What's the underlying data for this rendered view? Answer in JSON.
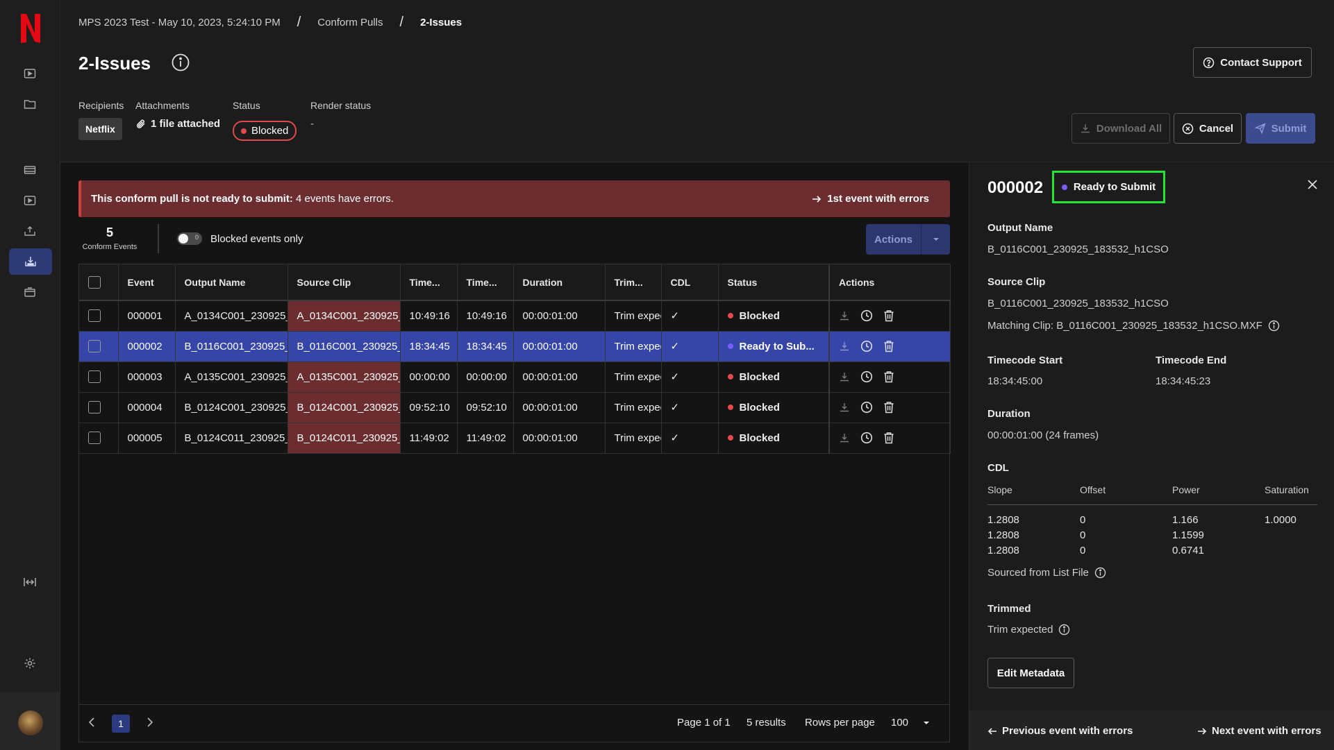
{
  "breadcrumb": {
    "project": "MPS 2023 Test - May 10, 2023, 5:24:10 PM",
    "section": "Conform Pulls",
    "current": "2-Issues",
    "separator": "/"
  },
  "page": {
    "title": "2-Issues",
    "recipients_label": "Recipients",
    "recipients_value": "Netflix",
    "attachments_label": "Attachments",
    "attachments_value": "1 file attached",
    "status_label": "Status",
    "status_value": "Blocked",
    "render_status_label": "Render status",
    "render_status_value": "-"
  },
  "header_buttons": {
    "contact_support": "Contact Support",
    "download_all": "Download All",
    "cancel": "Cancel",
    "submit": "Submit"
  },
  "banner": {
    "bold_text": "This conform pull is not ready to submit:",
    "text": "4 events have errors.",
    "link": "1st event with errors"
  },
  "summary": {
    "count": "5",
    "count_label": "Conform Events",
    "toggle_label": "Blocked events only",
    "toggle_state": "0",
    "actions_label": "Actions"
  },
  "table": {
    "columns": [
      "Event",
      "Output Name",
      "Source Clip",
      "Time...",
      "Time...",
      "Duration",
      "Trim...",
      "CDL",
      "Status",
      "Actions"
    ],
    "rows": [
      {
        "event": "000001",
        "output": "A_0134C001_230925_",
        "source": "A_0134C001_230925_",
        "tc_start": "10:49:16",
        "tc_end": "10:49:16",
        "duration": "00:00:01:00",
        "trim": "Trim expected",
        "cdl": "✓",
        "status": "Blocked"
      },
      {
        "event": "000002",
        "output": "B_0116C001_230925_",
        "source": "B_0116C001_230925_",
        "tc_start": "18:34:45",
        "tc_end": "18:34:45",
        "duration": "00:00:01:00",
        "trim": "Trim expected",
        "cdl": "✓",
        "status": "Ready to Sub..."
      },
      {
        "event": "000003",
        "output": "A_0135C001_230925_",
        "source": "A_0135C001_230925_",
        "tc_start": "00:00:00",
        "tc_end": "00:00:00",
        "duration": "00:00:01:00",
        "trim": "Trim expected",
        "cdl": "✓",
        "status": "Blocked"
      },
      {
        "event": "000004",
        "output": "B_0124C001_230925_",
        "source": "B_0124C001_230925_",
        "tc_start": "09:52:10",
        "tc_end": "09:52:10",
        "duration": "00:00:01:00",
        "trim": "Trim expected",
        "cdl": "✓",
        "status": "Blocked"
      },
      {
        "event": "000005",
        "output": "B_0124C011_230925_",
        "source": "B_0124C011_230925_",
        "tc_start": "11:49:02",
        "tc_end": "11:49:02",
        "duration": "00:00:01:00",
        "trim": "Trim expected",
        "cdl": "✓",
        "status": "Blocked"
      }
    ]
  },
  "pager": {
    "current_page": "1",
    "page_info": "Page 1 of 1",
    "results": "5 results",
    "rows_label": "Rows per page",
    "rows_value": "100"
  },
  "detail": {
    "event_id": "000002",
    "status": "Ready to Submit",
    "output_name_label": "Output Name",
    "output_name": "B_0116C001_230925_183532_h1CSO",
    "source_clip_label": "Source Clip",
    "source_clip": "B_0116C001_230925_183532_h1CSO",
    "matching_clip": "Matching Clip: B_0116C001_230925_183532_h1CSO.MXF",
    "tc_start_label": "Timecode Start",
    "tc_start": "18:34:45:00",
    "tc_end_label": "Timecode End",
    "tc_end": "18:34:45:23",
    "duration_label": "Duration",
    "duration": "00:00:01:00 (24 frames)",
    "cdl_label": "CDL",
    "cdl_headers": [
      "Slope",
      "Offset",
      "Power",
      "Saturation"
    ],
    "cdl_rows": [
      [
        "1.2808",
        "0",
        "1.166",
        "1.0000"
      ],
      [
        "1.2808",
        "0",
        "1.1599",
        ""
      ],
      [
        "1.2808",
        "0",
        "0.6741",
        ""
      ]
    ],
    "sourced_from": "Sourced from List File",
    "trimmed_label": "Trimmed",
    "trimmed_value": "Trim expected",
    "edit_button": "Edit Metadata",
    "prev_link": "Previous event with errors",
    "next_link": "Next event with errors"
  },
  "colors": {
    "accent": "#3645a8",
    "error": "#6b2d2f",
    "blocked_dot": "#e5484d",
    "ready_dot": "#7a5cff",
    "highlight_box": "#22e536"
  }
}
